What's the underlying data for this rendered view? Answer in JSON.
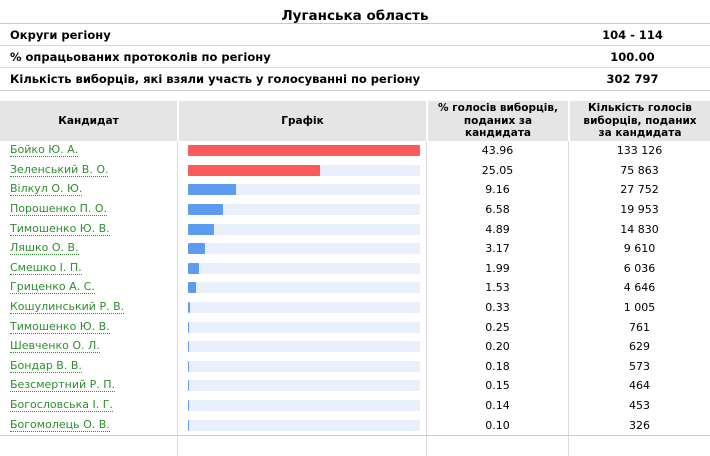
{
  "page_title": "Луганська область",
  "summary": {
    "rows": [
      {
        "label": "Округи регіону",
        "value": "104 - 114"
      },
      {
        "label": "% опрацьованих протоколів по регіону",
        "value": "100.00"
      },
      {
        "label": "Кількість виборців, які взяли участь у голосуванні по регіону",
        "value": "302 797"
      }
    ]
  },
  "results": {
    "columns": {
      "candidate": "Кандидат",
      "graph": "Графік",
      "percent": "% голосів виборців, поданих за кандидата",
      "votes": "Кількість голосів виборців, поданих за кандидата"
    },
    "max_percent": 43.96,
    "rows": [
      {
        "candidate": "Бойко Ю. А.",
        "percent": "43.96",
        "votes": "133 126",
        "bar": "red"
      },
      {
        "candidate": "Зеленський В. О.",
        "percent": "25.05",
        "votes": "75 863",
        "bar": "red"
      },
      {
        "candidate": "Вілкул О. Ю.",
        "percent": "9.16",
        "votes": "27 752",
        "bar": "blue"
      },
      {
        "candidate": "Порошенко П. О.",
        "percent": "6.58",
        "votes": "19 953",
        "bar": "blue"
      },
      {
        "candidate": "Тимошенко Ю. В.",
        "percent": "4.89",
        "votes": "14 830",
        "bar": "blue"
      },
      {
        "candidate": "Ляшко О. В.",
        "percent": "3.17",
        "votes": "9 610",
        "bar": "blue"
      },
      {
        "candidate": "Смешко І. П.",
        "percent": "1.99",
        "votes": "6 036",
        "bar": "blue"
      },
      {
        "candidate": "Гриценко А. С.",
        "percent": "1.53",
        "votes": "4 646",
        "bar": "blue"
      },
      {
        "candidate": "Кошулинський Р. В.",
        "percent": "0.33",
        "votes": "1 005",
        "bar": "blue"
      },
      {
        "candidate": "Тимошенко Ю. В.",
        "percent": "0.25",
        "votes": "761",
        "bar": "blue"
      },
      {
        "candidate": "Шевченко О. Л.",
        "percent": "0.20",
        "votes": "629",
        "bar": "blue"
      },
      {
        "candidate": "Бондар В. В.",
        "percent": "0.18",
        "votes": "573",
        "bar": "blue"
      },
      {
        "candidate": "Безсмертний Р. П.",
        "percent": "0.15",
        "votes": "464",
        "bar": "blue"
      },
      {
        "candidate": "Богословська І. Г.",
        "percent": "0.14",
        "votes": "453",
        "bar": "blue"
      },
      {
        "candidate": "Богомолець О. В.",
        "percent": "0.10",
        "votes": "326",
        "bar": "blue"
      }
    ]
  },
  "colors": {
    "bar_red": "#fb5a5a",
    "bar_blue": "#5b9bf0",
    "bar_track": "#e9effb",
    "header_bg": "#e5e5e5",
    "link_green": "#2e8f2e"
  },
  "chart_data": {
    "type": "bar",
    "orientation": "horizontal",
    "title": "Луганська область — % голосів виборців, поданих за кандидата",
    "categories": [
      "Бойко Ю. А.",
      "Зеленський В. О.",
      "Вілкул О. Ю.",
      "Порошенко П. О.",
      "Тимошенко Ю. В.",
      "Ляшко О. В.",
      "Смешко І. П.",
      "Гриценко А. С.",
      "Кошулинський Р. В.",
      "Тимошенко Ю. В.",
      "Шевченко О. Л.",
      "Бондар В. В.",
      "Безсмертний Р. П.",
      "Богословська І. Г.",
      "Богомолець О. В."
    ],
    "values": [
      43.96,
      25.05,
      9.16,
      6.58,
      4.89,
      3.17,
      1.99,
      1.53,
      0.33,
      0.25,
      0.2,
      0.18,
      0.15,
      0.14,
      0.1
    ],
    "votes": [
      133126,
      75863,
      27752,
      19953,
      14830,
      9610,
      6036,
      4646,
      1005,
      761,
      629,
      573,
      464,
      453,
      326
    ],
    "bar_color_by_index": [
      "red",
      "red",
      "blue",
      "blue",
      "blue",
      "blue",
      "blue",
      "blue",
      "blue",
      "blue",
      "blue",
      "blue",
      "blue",
      "blue",
      "blue"
    ],
    "xlim": [
      0,
      43.96
    ],
    "grid": false,
    "legend": false
  }
}
